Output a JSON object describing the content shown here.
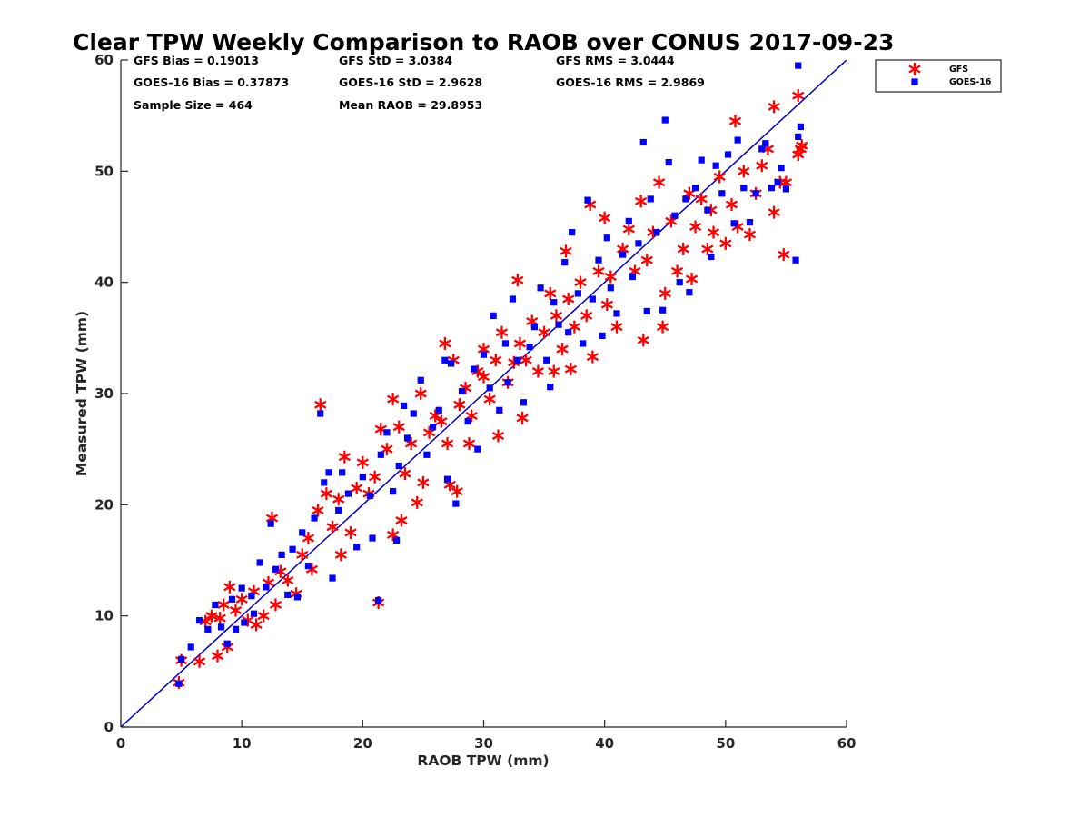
{
  "chart_data": {
    "type": "scatter",
    "title": "Clear TPW Weekly Comparison to RAOB over CONUS 2017-09-23",
    "xlabel": "RAOB TPW (mm)",
    "ylabel": "Measured TPW (mm)",
    "xlim": [
      0,
      60
    ],
    "ylim": [
      0,
      60
    ],
    "xticks": [
      "0",
      "10",
      "20",
      "30",
      "40",
      "50",
      "60"
    ],
    "yticks": [
      "0",
      "10",
      "20",
      "30",
      "40",
      "50",
      "60"
    ],
    "grid": false,
    "legend_position": "outside top-right",
    "reference_line": {
      "from": [
        0,
        0
      ],
      "to": [
        60,
        60
      ],
      "color": "#0000cc"
    },
    "stats": {
      "gfs_bias": "GFS Bias = 0.19013",
      "gfs_std": "GFS StD = 3.0384",
      "gfs_rms": "GFS RMS = 3.0444",
      "goes_bias": "GOES-16 Bias = 0.37873",
      "goes_std": "GOES-16 StD = 2.9628",
      "goes_rms": "GOES-16 RMS = 2.9869",
      "sample_size": "Sample Size = 464",
      "mean_raob": "Mean RAOB = 29.8953"
    },
    "series": [
      {
        "name": "GFS",
        "marker": "asterisk",
        "color": "#ff0000",
        "points": [
          [
            4.8,
            4.0
          ],
          [
            5.0,
            6.0
          ],
          [
            6.5,
            5.9
          ],
          [
            7.0,
            9.5
          ],
          [
            7.5,
            10.0
          ],
          [
            8.0,
            6.4
          ],
          [
            8.2,
            9.8
          ],
          [
            8.5,
            11.0
          ],
          [
            8.8,
            7.2
          ],
          [
            9.0,
            12.6
          ],
          [
            9.5,
            10.5
          ],
          [
            10.0,
            11.5
          ],
          [
            10.5,
            9.6
          ],
          [
            11.0,
            12.2
          ],
          [
            11.2,
            9.2
          ],
          [
            11.8,
            10.0
          ],
          [
            12.2,
            13.0
          ],
          [
            12.5,
            18.8
          ],
          [
            12.8,
            11.0
          ],
          [
            13.2,
            14.0
          ],
          [
            13.8,
            13.2
          ],
          [
            14.5,
            12.0
          ],
          [
            15.0,
            15.5
          ],
          [
            15.5,
            17.0
          ],
          [
            15.8,
            14.2
          ],
          [
            16.3,
            19.5
          ],
          [
            16.5,
            29.0
          ],
          [
            17.0,
            21.0
          ],
          [
            17.5,
            18.0
          ],
          [
            18.0,
            20.5
          ],
          [
            18.2,
            15.5
          ],
          [
            18.5,
            24.3
          ],
          [
            19.0,
            17.5
          ],
          [
            19.5,
            21.5
          ],
          [
            20.0,
            23.8
          ],
          [
            20.5,
            21.0
          ],
          [
            21.0,
            22.5
          ],
          [
            21.3,
            11.2
          ],
          [
            21.5,
            26.8
          ],
          [
            22.0,
            25.0
          ],
          [
            22.5,
            29.5
          ],
          [
            22.5,
            17.3
          ],
          [
            23.0,
            27.0
          ],
          [
            23.2,
            18.6
          ],
          [
            23.5,
            22.8
          ],
          [
            24.0,
            25.5
          ],
          [
            24.5,
            20.2
          ],
          [
            24.8,
            30.0
          ],
          [
            25.0,
            22.0
          ],
          [
            25.5,
            26.5
          ],
          [
            26.0,
            28.0
          ],
          [
            26.5,
            27.5
          ],
          [
            26.8,
            34.5
          ],
          [
            27.0,
            25.5
          ],
          [
            27.2,
            21.8
          ],
          [
            27.5,
            33.0
          ],
          [
            27.8,
            21.2
          ],
          [
            28.0,
            29.0
          ],
          [
            28.5,
            30.5
          ],
          [
            28.8,
            25.5
          ],
          [
            29.0,
            28.0
          ],
          [
            29.5,
            32.0
          ],
          [
            30.0,
            31.5
          ],
          [
            30.0,
            34.0
          ],
          [
            30.5,
            29.5
          ],
          [
            31.0,
            33.0
          ],
          [
            31.2,
            26.2
          ],
          [
            31.5,
            35.5
          ],
          [
            32.0,
            31.0
          ],
          [
            32.5,
            32.8
          ],
          [
            32.8,
            40.2
          ],
          [
            33.0,
            34.5
          ],
          [
            33.2,
            27.8
          ],
          [
            33.5,
            33.0
          ],
          [
            34.0,
            36.5
          ],
          [
            34.5,
            32.0
          ],
          [
            35.0,
            35.5
          ],
          [
            35.5,
            39.0
          ],
          [
            35.8,
            32.0
          ],
          [
            36.0,
            37.0
          ],
          [
            36.5,
            34.0
          ],
          [
            36.8,
            42.8
          ],
          [
            37.0,
            38.5
          ],
          [
            37.2,
            32.2
          ],
          [
            37.5,
            36.0
          ],
          [
            38.0,
            40.0
          ],
          [
            38.5,
            37.0
          ],
          [
            38.8,
            47.0
          ],
          [
            39.0,
            33.3
          ],
          [
            39.5,
            41.0
          ],
          [
            40.0,
            45.8
          ],
          [
            40.2,
            38.0
          ],
          [
            40.5,
            40.5
          ],
          [
            41.0,
            36.0
          ],
          [
            41.5,
            43.0
          ],
          [
            42.0,
            44.8
          ],
          [
            42.5,
            41.0
          ],
          [
            43.0,
            47.3
          ],
          [
            43.2,
            34.8
          ],
          [
            43.5,
            42.0
          ],
          [
            44.0,
            44.5
          ],
          [
            44.5,
            49.0
          ],
          [
            44.8,
            36.0
          ],
          [
            45.0,
            39.0
          ],
          [
            45.5,
            45.5
          ],
          [
            46.0,
            41.0
          ],
          [
            46.5,
            43.0
          ],
          [
            47.0,
            48.0
          ],
          [
            47.2,
            40.3
          ],
          [
            47.5,
            45.0
          ],
          [
            48.0,
            47.5
          ],
          [
            48.5,
            43.0
          ],
          [
            48.8,
            46.5
          ],
          [
            49.0,
            44.5
          ],
          [
            49.5,
            49.5
          ],
          [
            50.0,
            43.5
          ],
          [
            50.5,
            47.0
          ],
          [
            50.8,
            54.5
          ],
          [
            51.0,
            45.0
          ],
          [
            51.5,
            50.0
          ],
          [
            52.0,
            44.3
          ],
          [
            52.5,
            48.0
          ],
          [
            53.0,
            50.5
          ],
          [
            53.5,
            52.0
          ],
          [
            54.0,
            46.3
          ],
          [
            54.0,
            55.8
          ],
          [
            54.5,
            49.0
          ],
          [
            54.8,
            42.5
          ],
          [
            55.0,
            49.0
          ],
          [
            56.0,
            56.8
          ],
          [
            56.0,
            51.5
          ],
          [
            56.2,
            52.0
          ],
          [
            56.3,
            52.3
          ]
        ]
      },
      {
        "name": "GOES-16",
        "marker": "square",
        "color": "#0000ff",
        "points": [
          [
            4.8,
            3.9
          ],
          [
            5.0,
            6.1
          ],
          [
            5.8,
            7.2
          ],
          [
            6.5,
            9.6
          ],
          [
            7.2,
            8.8
          ],
          [
            7.8,
            11.0
          ],
          [
            8.3,
            9.0
          ],
          [
            8.8,
            7.5
          ],
          [
            9.2,
            11.5
          ],
          [
            9.5,
            8.8
          ],
          [
            10.0,
            12.5
          ],
          [
            10.2,
            9.4
          ],
          [
            10.8,
            11.8
          ],
          [
            11.0,
            10.2
          ],
          [
            11.5,
            14.8
          ],
          [
            12.0,
            12.6
          ],
          [
            12.4,
            18.3
          ],
          [
            12.8,
            14.2
          ],
          [
            13.3,
            15.5
          ],
          [
            13.8,
            11.9
          ],
          [
            14.2,
            16.0
          ],
          [
            14.6,
            11.7
          ],
          [
            15.0,
            17.5
          ],
          [
            15.5,
            14.5
          ],
          [
            16.0,
            18.8
          ],
          [
            16.5,
            28.2
          ],
          [
            16.8,
            22.0
          ],
          [
            17.2,
            22.9
          ],
          [
            17.5,
            13.4
          ],
          [
            18.0,
            19.5
          ],
          [
            18.3,
            22.9
          ],
          [
            18.8,
            21.0
          ],
          [
            19.5,
            16.2
          ],
          [
            20.0,
            22.5
          ],
          [
            20.6,
            20.8
          ],
          [
            20.8,
            17.0
          ],
          [
            21.3,
            11.4
          ],
          [
            21.5,
            24.5
          ],
          [
            22.0,
            26.5
          ],
          [
            22.5,
            21.2
          ],
          [
            22.8,
            16.8
          ],
          [
            23.0,
            23.5
          ],
          [
            23.4,
            28.9
          ],
          [
            23.7,
            26.0
          ],
          [
            24.2,
            28.2
          ],
          [
            24.8,
            31.2
          ],
          [
            25.3,
            24.5
          ],
          [
            25.8,
            27.0
          ],
          [
            26.3,
            28.5
          ],
          [
            26.8,
            33.0
          ],
          [
            27.0,
            22.3
          ],
          [
            27.3,
            32.7
          ],
          [
            27.7,
            20.1
          ],
          [
            28.2,
            30.2
          ],
          [
            28.7,
            27.5
          ],
          [
            29.2,
            32.2
          ],
          [
            29.5,
            25.0
          ],
          [
            30.0,
            33.5
          ],
          [
            30.5,
            30.5
          ],
          [
            30.8,
            37.0
          ],
          [
            31.3,
            28.5
          ],
          [
            31.8,
            34.5
          ],
          [
            32.0,
            31.0
          ],
          [
            32.4,
            38.5
          ],
          [
            32.8,
            33.0
          ],
          [
            33.3,
            29.2
          ],
          [
            33.8,
            34.2
          ],
          [
            34.2,
            36.0
          ],
          [
            34.7,
            39.5
          ],
          [
            35.2,
            33.0
          ],
          [
            35.5,
            30.6
          ],
          [
            35.8,
            38.2
          ],
          [
            36.2,
            36.2
          ],
          [
            36.7,
            41.8
          ],
          [
            37.0,
            35.5
          ],
          [
            37.3,
            44.5
          ],
          [
            37.8,
            39.0
          ],
          [
            38.2,
            34.5
          ],
          [
            38.6,
            47.4
          ],
          [
            39.0,
            38.5
          ],
          [
            39.5,
            42.0
          ],
          [
            39.8,
            35.2
          ],
          [
            40.2,
            44.0
          ],
          [
            40.5,
            39.5
          ],
          [
            41.0,
            37.2
          ],
          [
            41.5,
            42.5
          ],
          [
            42.0,
            45.5
          ],
          [
            42.3,
            40.5
          ],
          [
            42.8,
            43.5
          ],
          [
            43.2,
            52.6
          ],
          [
            43.5,
            37.4
          ],
          [
            43.8,
            47.5
          ],
          [
            44.3,
            44.5
          ],
          [
            44.8,
            37.5
          ],
          [
            45.0,
            54.6
          ],
          [
            45.3,
            50.8
          ],
          [
            45.8,
            46.0
          ],
          [
            46.2,
            40.0
          ],
          [
            46.7,
            47.5
          ],
          [
            47.0,
            39.1
          ],
          [
            47.5,
            48.5
          ],
          [
            48.0,
            51.0
          ],
          [
            48.5,
            46.5
          ],
          [
            48.8,
            42.3
          ],
          [
            49.2,
            50.5
          ],
          [
            49.7,
            48.0
          ],
          [
            50.2,
            51.5
          ],
          [
            50.7,
            45.3
          ],
          [
            51.0,
            52.8
          ],
          [
            51.5,
            48.5
          ],
          [
            52.0,
            45.4
          ],
          [
            52.5,
            48.0
          ],
          [
            53.0,
            52.0
          ],
          [
            53.3,
            52.5
          ],
          [
            53.8,
            48.5
          ],
          [
            54.3,
            49.0
          ],
          [
            54.6,
            50.3
          ],
          [
            55.0,
            48.4
          ],
          [
            55.8,
            42.0
          ],
          [
            56.0,
            53.1
          ],
          [
            56.2,
            54.0
          ],
          [
            56.0,
            59.5
          ]
        ]
      }
    ]
  }
}
